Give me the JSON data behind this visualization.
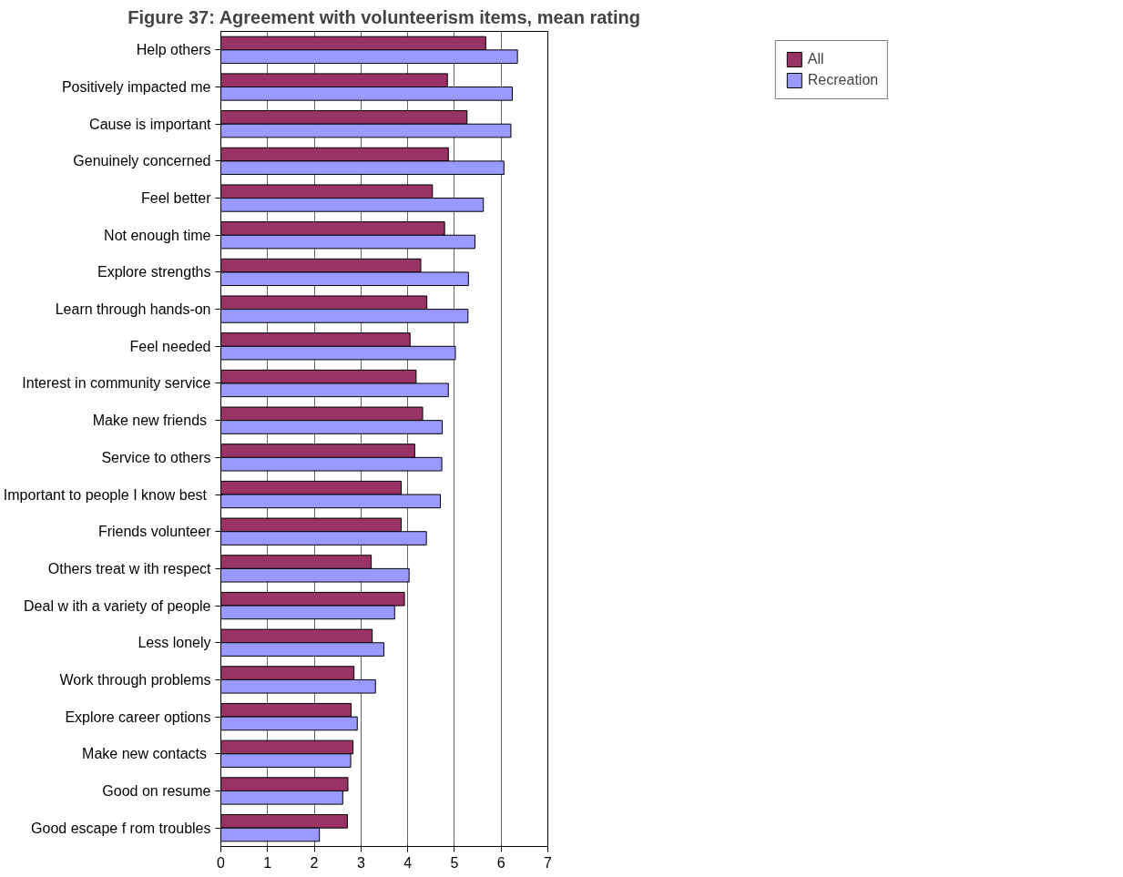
{
  "chart_data": {
    "type": "bar",
    "orientation": "horizontal",
    "title": "Figure 37: Agreement with volunteerism items, mean rating",
    "categories": [
      "Help others",
      "Positively impacted me",
      "Cause is important",
      "Genuinely concerned",
      "Feel better",
      "Not enough time",
      "Explore strengths",
      "Learn through hands-on",
      "Feel needed",
      "Interest in community service",
      "Make new  friends",
      "Service to others",
      "Important to people I know  best",
      "Friends volunteer",
      "Others treat w ith respect",
      "Deal w ith a variety of people",
      "Less lonely",
      "Work through problems",
      "Explore career options",
      "Make new  contacts",
      "Good on resume",
      "Good escape f rom troubles"
    ],
    "series": [
      {
        "name": "All",
        "color": "#993366",
        "values": [
          5.67,
          4.85,
          5.27,
          4.87,
          4.53,
          4.79,
          4.28,
          4.41,
          4.05,
          4.18,
          4.32,
          4.15,
          3.86,
          3.86,
          3.22,
          3.93,
          3.24,
          2.85,
          2.79,
          2.83,
          2.72,
          2.71
        ]
      },
      {
        "name": "Recreation",
        "color": "#9999ff",
        "values": [
          6.35,
          6.24,
          6.21,
          6.06,
          5.62,
          5.44,
          5.3,
          5.29,
          5.02,
          4.87,
          4.74,
          4.73,
          4.7,
          4.4,
          4.03,
          3.72,
          3.49,
          3.31,
          2.92,
          2.78,
          2.61,
          2.11
        ]
      }
    ],
    "xlim": [
      0,
      7
    ],
    "xticks": [
      0,
      1,
      2,
      3,
      4,
      5,
      6,
      7
    ],
    "grid": "x",
    "legend": "top right"
  }
}
